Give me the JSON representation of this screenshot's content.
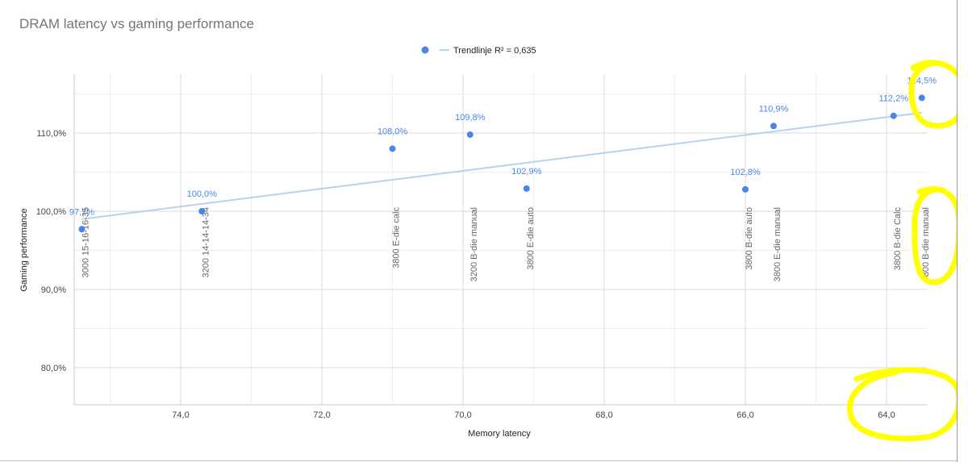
{
  "chart_data": {
    "type": "scatter",
    "title": "DRAM latency vs gaming performance",
    "xlabel": "Memory latency",
    "ylabel": "Gaming performance",
    "x_reversed": true,
    "xlim": [
      75.4,
      63.5
    ],
    "ylim": [
      75,
      116.5
    ],
    "x_ticks": [
      74.0,
      72.0,
      70.0,
      68.0,
      66.0,
      64.0
    ],
    "x_tick_labels": [
      "74,0",
      "72,0",
      "70,0",
      "68,0",
      "66,0",
      "64,0"
    ],
    "y_ticks": [
      80,
      90,
      100,
      110
    ],
    "y_tick_labels": [
      "80,0%",
      "90,0%",
      "100,0%",
      "110,0%"
    ],
    "grid": true,
    "legend_position": "top",
    "series": [
      {
        "points": [
          {
            "x": 75.4,
            "y": 97.7,
            "label": "97,7%",
            "annotation": "3000 15-16-16-35"
          },
          {
            "x": 73.7,
            "y": 100.0,
            "label": "100,0%",
            "annotation": "3200 14-14-14-34"
          },
          {
            "x": 71.0,
            "y": 108.0,
            "label": "108,0%",
            "annotation": "3800 E-die calc"
          },
          {
            "x": 69.9,
            "y": 109.8,
            "label": "109,8%",
            "annotation": "3200 B-die manual"
          },
          {
            "x": 69.1,
            "y": 102.9,
            "label": "102,9%",
            "annotation": "3800 E-die auto"
          },
          {
            "x": 66.0,
            "y": 102.8,
            "label": "102,8%",
            "annotation": "3800 B-die auto"
          },
          {
            "x": 65.6,
            "y": 110.9,
            "label": "110,9%",
            "annotation": "3800 E-die manual"
          },
          {
            "x": 63.9,
            "y": 112.2,
            "label": "112,2%",
            "annotation": "3800 B-die Calc"
          },
          {
            "x": 63.5,
            "y": 114.5,
            "label": "114,5%",
            "annotation": "3800 B-die manual"
          }
        ]
      }
    ],
    "trendline": {
      "label": "Trendlinje R² = 0,635",
      "x_start": 75.4,
      "y_start": 99.0,
      "x_end": 63.5,
      "y_end": 112.6
    },
    "colors": {
      "point": "#4a86e8",
      "trendline": "#b8d1f2",
      "label": "#4a86e8",
      "grid": "#d9d9d9"
    },
    "highlight_color": "#ffff00"
  }
}
